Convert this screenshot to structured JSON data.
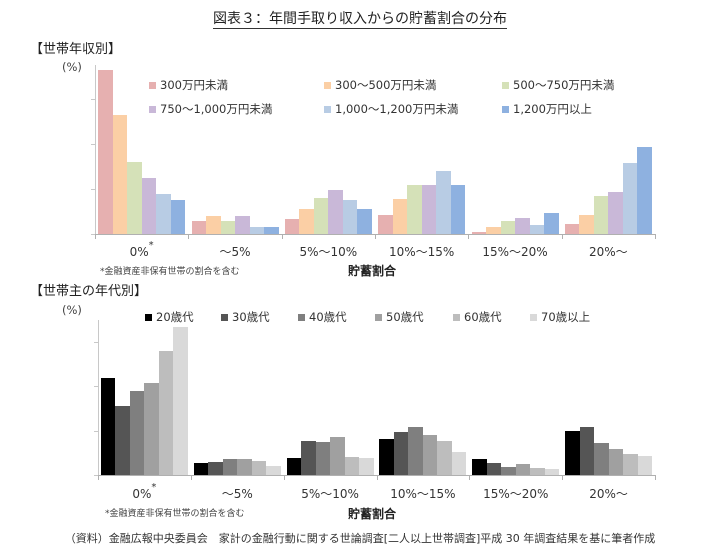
{
  "title": "図表３：年間手取り収入からの貯蓄割合の分布",
  "source": "（資料）金融広報中央委員会　家計の金融行動に関する世論調査[二人以上世帯調査]平成 30 年調査結果を基に筆者作成",
  "charts": {
    "income": {
      "section_label": "【世帯年収別】",
      "unit": "(%)",
      "note": "*金融資産非保有世帯の割合を含む",
      "xlabel": "貯蓄割合",
      "yticks": [
        "0",
        "20",
        "40",
        "60"
      ]
    },
    "age": {
      "section_label": "【世帯主の年代別】",
      "unit": "(%)",
      "note": "*金融資産非保有世帯の割合を含む",
      "xlabel": "貯蓄割合",
      "yticks": [
        "0",
        "20",
        "40",
        "60"
      ]
    }
  },
  "chart_data": [
    {
      "type": "bar",
      "title": "【世帯年収別】",
      "xlabel": "貯蓄割合",
      "ylabel": "(%)",
      "ylim": [
        0,
        75
      ],
      "yticks": [
        0,
        20,
        40,
        60
      ],
      "grid": false,
      "legend_position": "top-right (inside, 3 columns)",
      "categories": [
        "0%*",
        "～5%",
        "5%～10%",
        "10%～15%",
        "15%～20%",
        "20%～"
      ],
      "annotation": "*金融資産非保有世帯の割合を含む",
      "series": [
        {
          "name": "300万円未満",
          "color": "#E6B0B0",
          "values": [
            73,
            6,
            6.5,
            8.5,
            1,
            4.5
          ]
        },
        {
          "name": "300～500万円未満",
          "color": "#FBCFA5",
          "values": [
            53,
            8,
            11,
            15.5,
            3,
            8.5
          ]
        },
        {
          "name": "500～750万円未満",
          "color": "#D5E1B8",
          "values": [
            32,
            6,
            16,
            22,
            6,
            17
          ]
        },
        {
          "name": "750～1,000万円未満",
          "color": "#C9B8D8",
          "values": [
            25,
            8,
            19.5,
            22,
            7,
            18.5
          ]
        },
        {
          "name": "1,000～1,200万円未満",
          "color": "#B8CCE4",
          "values": [
            18,
            3,
            15,
            28,
            4,
            31.5
          ]
        },
        {
          "name": "1,200万円以上",
          "color": "#8EB1E0",
          "values": [
            15,
            3,
            11,
            22,
            9.5,
            38.5
          ]
        }
      ]
    },
    {
      "type": "bar",
      "title": "【世帯主の年代別】",
      "xlabel": "貯蓄割合",
      "ylabel": "(%)",
      "ylim": [
        0,
        70
      ],
      "yticks": [
        0,
        20,
        40,
        60
      ],
      "grid": false,
      "legend_position": "top (single row)",
      "categories": [
        "0%*",
        "～5%",
        "5%～10%",
        "10%～15%",
        "15%～20%",
        "20%～"
      ],
      "annotation": "*金融資産非保有世帯の割合を含む",
      "series": [
        {
          "name": "20歳代",
          "color": "#000000",
          "values": [
            43.5,
            5.5,
            7.5,
            16,
            7,
            20
          ]
        },
        {
          "name": "30歳代",
          "color": "#555555",
          "values": [
            31,
            6,
            15.5,
            19.5,
            5.5,
            21.5
          ]
        },
        {
          "name": "40歳代",
          "color": "#7F7F7F",
          "values": [
            38,
            7,
            15,
            21.5,
            3.5,
            14.5
          ]
        },
        {
          "name": "50歳代",
          "color": "#A0A0A0",
          "values": [
            41.5,
            7,
            17,
            18,
            5,
            11.5
          ]
        },
        {
          "name": "60歳代",
          "color": "#BDBDBD",
          "values": [
            56,
            6.5,
            8,
            15.5,
            3,
            9.5
          ]
        },
        {
          "name": "70歳以上",
          "color": "#D9D9D9",
          "values": [
            66.5,
            4,
            7.5,
            10.5,
            2.5,
            8.5
          ]
        }
      ]
    }
  ]
}
